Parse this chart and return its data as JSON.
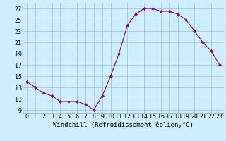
{
  "x": [
    0,
    1,
    2,
    3,
    4,
    5,
    6,
    7,
    8,
    9,
    10,
    11,
    12,
    13,
    14,
    15,
    16,
    17,
    18,
    19,
    20,
    21,
    22,
    23
  ],
  "y": [
    14.0,
    13.0,
    12.0,
    11.5,
    10.5,
    10.5,
    10.5,
    10.0,
    9.0,
    11.5,
    15.0,
    19.0,
    24.0,
    26.0,
    27.0,
    27.0,
    26.5,
    26.5,
    26.0,
    25.0,
    23.0,
    21.0,
    19.5,
    17.0
  ],
  "line_color": "#880088",
  "marker": "D",
  "marker_size": 2,
  "bg_color": "#cceeff",
  "grid_color": "#aabbcc",
  "xlabel": "Windchill (Refroidissement éolien,°C)",
  "xlabel_fontsize": 6.5,
  "tick_fontsize": 6.0,
  "ylim": [
    8.5,
    28
  ],
  "yticks": [
    9,
    11,
    13,
    15,
    17,
    19,
    21,
    23,
    25,
    27
  ],
  "xlim": [
    -0.5,
    23.5
  ]
}
